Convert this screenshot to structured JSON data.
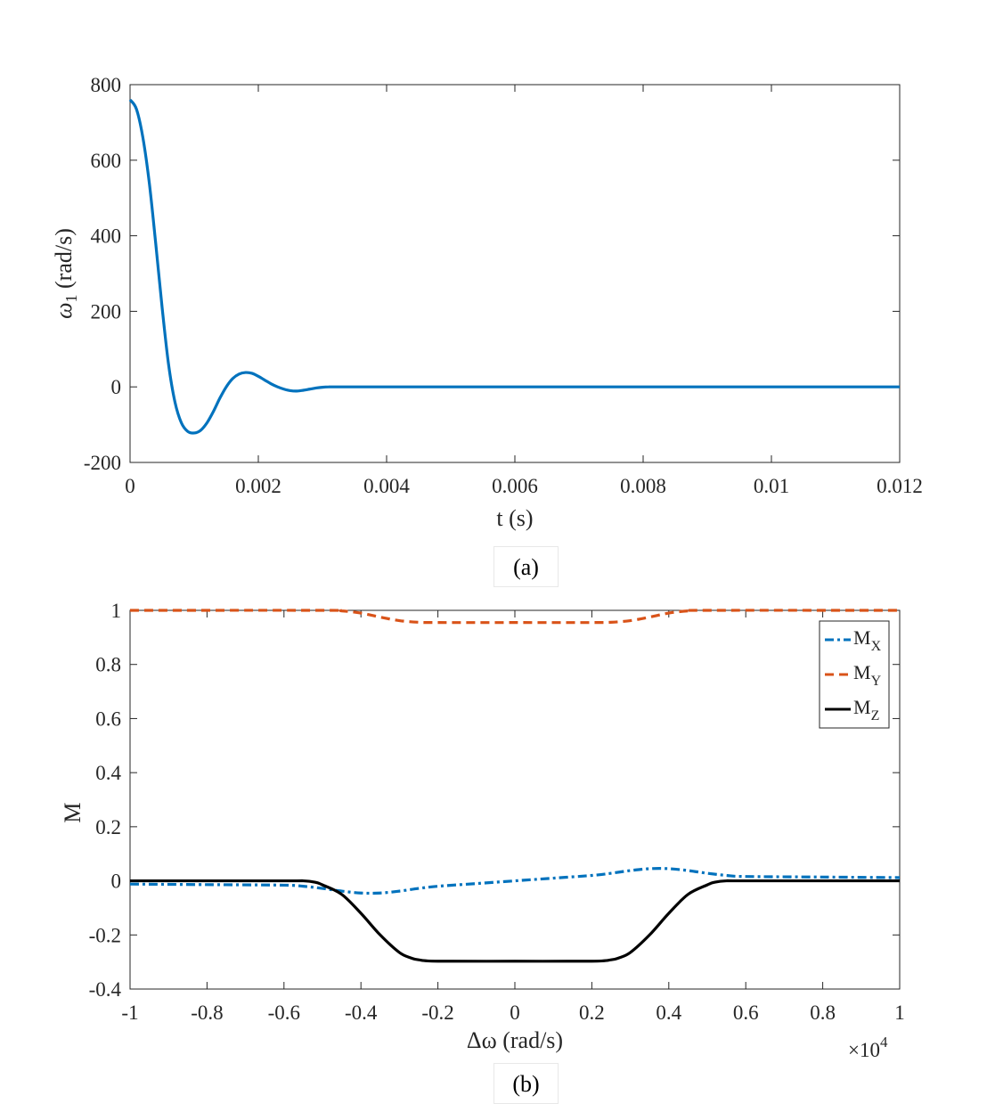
{
  "captions": [
    "(a)",
    "(b)"
  ],
  "colors": {
    "blue": "#0072BD",
    "orange": "#D95319",
    "black": "#000000",
    "axis": "#262626"
  },
  "chart_data": [
    {
      "type": "line",
      "xlabel": "t (s)",
      "ylabel_symbol": "ω",
      "ylabel_sub": "1",
      "ylabel_rest": " (rad/s)",
      "xlim": [
        0,
        0.012
      ],
      "ylim": [
        -200,
        800
      ],
      "xticks": [
        0,
        0.002,
        0.004,
        0.006,
        0.008,
        0.01,
        0.012
      ],
      "xtick_labels": [
        "0",
        "0.002",
        "0.004",
        "0.006",
        "0.008",
        "0.01",
        "0.012"
      ],
      "yticks": [
        -200,
        0,
        200,
        400,
        600,
        800
      ],
      "ytick_labels": [
        "-200",
        "0",
        "200",
        "400",
        "600",
        "800"
      ],
      "grid": false,
      "series": [
        {
          "color": "#0072BD",
          "style": "solid",
          "x": [
            0,
            0.0001,
            0.0002,
            0.0003,
            0.0004,
            0.0005,
            0.0006,
            0.0007,
            0.0008,
            0.0009,
            0.001,
            0.0011,
            0.0012,
            0.0013,
            0.0014,
            0.0015,
            0.0016,
            0.0017,
            0.0018,
            0.0019,
            0.002,
            0.0021,
            0.0022,
            0.0023,
            0.0024,
            0.0025,
            0.0026,
            0.0027,
            0.0028,
            0.0029,
            0.003,
            0.0031,
            0.0032,
            0.004,
            0.006,
            0.008,
            0.01,
            0.012
          ],
          "y": [
            760,
            735,
            660,
            540,
            380,
            210,
            60,
            -40,
            -95,
            -118,
            -122,
            -115,
            -95,
            -65,
            -30,
            0,
            22,
            34,
            38,
            36,
            28,
            18,
            8,
            0,
            -6,
            -10,
            -11,
            -9,
            -6,
            -3,
            -1,
            0,
            0,
            0,
            0,
            0,
            0,
            0
          ]
        }
      ]
    },
    {
      "type": "line",
      "xlabel": "Δω (rad/s)",
      "ylabel": "M",
      "x_exponent_base": "×10",
      "x_exponent_power": "4",
      "xlim": [
        -1,
        1
      ],
      "ylim": [
        -0.4,
        1
      ],
      "xticks": [
        -1,
        -0.8,
        -0.6,
        -0.4,
        -0.2,
        0,
        0.2,
        0.4,
        0.6,
        0.8,
        1
      ],
      "xtick_labels": [
        "-1",
        "-0.8",
        "-0.6",
        "-0.4",
        "-0.2",
        "0",
        "0.2",
        "0.4",
        "0.6",
        "0.8",
        "1"
      ],
      "yticks": [
        -0.4,
        -0.2,
        0,
        0.2,
        0.4,
        0.6,
        0.8,
        1
      ],
      "ytick_labels": [
        "-0.4",
        "-0.2",
        "0",
        "0.2",
        "0.4",
        "0.6",
        "0.8",
        "1"
      ],
      "grid": false,
      "legend_position": "top-right",
      "series": [
        {
          "name_base": "M",
          "name_sub": "X",
          "color": "#0072BD",
          "style": "dashdot",
          "x": [
            -1,
            -0.8,
            -0.6,
            -0.55,
            -0.5,
            -0.45,
            -0.4,
            -0.35,
            -0.3,
            -0.25,
            -0.2,
            -0.1,
            0,
            0.1,
            0.2,
            0.25,
            0.3,
            0.35,
            0.4,
            0.45,
            0.5,
            0.55,
            0.6,
            0.8,
            1
          ],
          "y": [
            -0.012,
            -0.014,
            -0.016,
            -0.02,
            -0.028,
            -0.038,
            -0.045,
            -0.045,
            -0.038,
            -0.028,
            -0.02,
            -0.01,
            0,
            0.01,
            0.02,
            0.028,
            0.038,
            0.045,
            0.045,
            0.038,
            0.028,
            0.02,
            0.016,
            0.014,
            0.012
          ]
        },
        {
          "name_base": "M",
          "name_sub": "Y",
          "color": "#D95319",
          "style": "dashed",
          "x": [
            -1,
            -0.5,
            -0.45,
            -0.4,
            -0.35,
            -0.3,
            -0.25,
            -0.2,
            0,
            0.2,
            0.25,
            0.3,
            0.35,
            0.4,
            0.45,
            0.5,
            1
          ],
          "y": [
            1,
            1,
            0.998,
            0.99,
            0.975,
            0.962,
            0.956,
            0.955,
            0.955,
            0.955,
            0.956,
            0.962,
            0.975,
            0.99,
            0.998,
            1,
            1
          ]
        },
        {
          "name_base": "M",
          "name_sub": "Z",
          "color": "#000000",
          "style": "solid",
          "x": [
            -1,
            -0.6,
            -0.55,
            -0.52,
            -0.5,
            -0.45,
            -0.4,
            -0.35,
            -0.3,
            -0.27,
            -0.25,
            -0.2,
            0,
            0.2,
            0.25,
            0.27,
            0.3,
            0.35,
            0.4,
            0.45,
            0.5,
            0.52,
            0.55,
            0.6,
            1
          ],
          "y": [
            0,
            0,
            0,
            -0.005,
            -0.015,
            -0.05,
            -0.12,
            -0.2,
            -0.265,
            -0.285,
            -0.292,
            -0.297,
            -0.297,
            -0.297,
            -0.292,
            -0.285,
            -0.265,
            -0.2,
            -0.12,
            -0.05,
            -0.015,
            -0.005,
            0,
            0,
            0
          ]
        }
      ]
    }
  ]
}
